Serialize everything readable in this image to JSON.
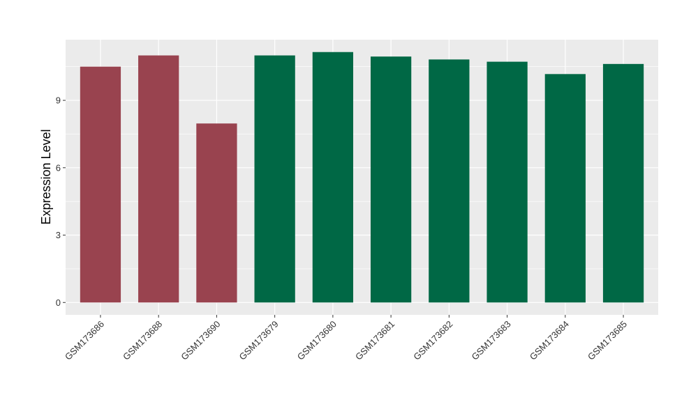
{
  "chart_data": {
    "type": "bar",
    "title": "",
    "xlabel": "",
    "ylabel": "Expression Level",
    "categories": [
      "GSM173686",
      "GSM173688",
      "GSM173690",
      "GSM173679",
      "GSM173680",
      "GSM173681",
      "GSM173682",
      "GSM173683",
      "GSM173684",
      "GSM173685"
    ],
    "values": [
      10.5,
      11.0,
      7.97,
      11.0,
      11.15,
      10.95,
      10.82,
      10.72,
      10.17,
      10.62
    ],
    "group": [
      0,
      0,
      0,
      1,
      1,
      1,
      1,
      1,
      1,
      1
    ],
    "group_colors": [
      "#99434F",
      "#006845"
    ],
    "ylim": [
      -0.55,
      11.7
    ],
    "yticks": [
      0,
      3,
      6,
      9
    ],
    "grid": true,
    "background": "#EBEBEB",
    "legend": "none"
  }
}
